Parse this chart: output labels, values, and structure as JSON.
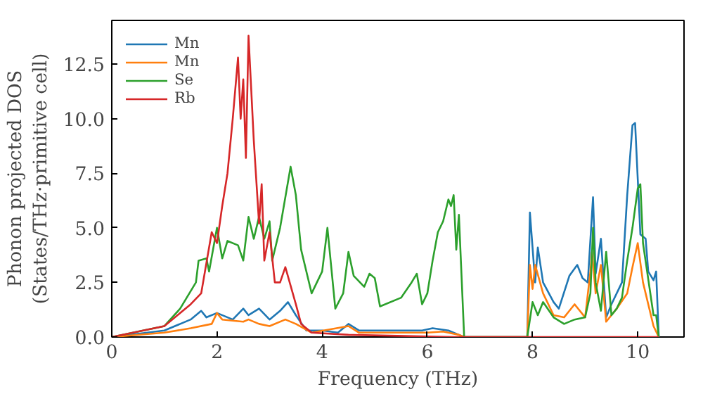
{
  "chart_data": {
    "type": "line",
    "xlabel": "Frequency (THz)",
    "ylabel": "Phonon projected DOS\n(States/THz·primitive cell)",
    "xlim": [
      0,
      10.88
    ],
    "ylim": [
      0,
      14.5
    ],
    "xticks": [
      0,
      2,
      4,
      6,
      8,
      10
    ],
    "yticks": [
      {
        "value": 0,
        "label": "0.0"
      },
      2.5,
      {
        "value": 5,
        "label": "5.0"
      },
      {
        "value": 7.5,
        "label": "7.5"
      },
      {
        "value": 10,
        "label": "10.0"
      },
      12.5
    ],
    "grid": false,
    "legend": "top left",
    "series": [
      {
        "name": "Mn",
        "color": "#1f77b4",
        "x": [
          0,
          1,
          1.5,
          1.7,
          1.8,
          2.0,
          2.3,
          2.5,
          2.6,
          2.8,
          3.0,
          3.2,
          3.35,
          3.5,
          3.7,
          4.0,
          4.3,
          4.5,
          4.7,
          5.5,
          5.9,
          6.1,
          6.4,
          6.6,
          6.7,
          7.9,
          7.95,
          8.05,
          8.1,
          8.2,
          8.4,
          8.5,
          8.7,
          8.85,
          8.95,
          9.05,
          9.15,
          9.2,
          9.3,
          9.4,
          9.5,
          9.7,
          9.8,
          9.9,
          9.95,
          10.05,
          10.15,
          10.2,
          10.3,
          10.35,
          10.4
        ],
        "values": [
          0,
          0.3,
          0.8,
          1.2,
          0.9,
          1.1,
          0.8,
          1.3,
          1.0,
          1.3,
          0.8,
          1.2,
          1.6,
          1.0,
          0.3,
          0.3,
          0.2,
          0.6,
          0.3,
          0.3,
          0.3,
          0.4,
          0.3,
          0.1,
          0,
          0,
          5.7,
          2.5,
          4.1,
          2.5,
          1.6,
          1.3,
          2.8,
          3.3,
          2.7,
          2.5,
          6.4,
          2.9,
          4.5,
          0.9,
          1.5,
          2.5,
          6.5,
          9.7,
          9.8,
          4.7,
          4.5,
          3.0,
          2.6,
          3.0,
          0
        ]
      },
      {
        "name": "Mn",
        "color": "#ff7f0e",
        "x": [
          0,
          1,
          1.5,
          1.9,
          2.0,
          2.1,
          2.5,
          2.6,
          2.8,
          3.0,
          3.3,
          3.5,
          3.8,
          4.5,
          4.7,
          5.5,
          6.0,
          6.3,
          6.6,
          6.7,
          7.9,
          7.95,
          8.0,
          8.05,
          8.2,
          8.4,
          8.6,
          8.7,
          8.8,
          9.0,
          9.1,
          9.13,
          9.2,
          9.3,
          9.4,
          9.6,
          9.8,
          9.9,
          10.0,
          10.1,
          10.3,
          10.4
        ],
        "values": [
          0,
          0.2,
          0.4,
          0.6,
          1.1,
          0.8,
          0.7,
          0.8,
          0.6,
          0.5,
          0.8,
          0.6,
          0.2,
          0.5,
          0.2,
          0.2,
          0.2,
          0.25,
          0.1,
          0,
          0,
          3.3,
          2.2,
          3.3,
          2.0,
          1.0,
          0.9,
          1.2,
          1.5,
          0.9,
          3.0,
          3.9,
          2.0,
          3.3,
          0.7,
          1.3,
          2.0,
          3.2,
          4.3,
          2.5,
          0.5,
          0
        ]
      },
      {
        "name": "Se",
        "color": "#2ca02c",
        "x": [
          0,
          1,
          1.3,
          1.6,
          1.65,
          1.8,
          1.85,
          2.0,
          2.1,
          2.2,
          2.4,
          2.5,
          2.6,
          2.7,
          2.8,
          2.9,
          3.0,
          3.05,
          3.2,
          3.4,
          3.5,
          3.6,
          3.8,
          4.0,
          4.1,
          4.25,
          4.4,
          4.5,
          4.6,
          4.8,
          4.9,
          5.0,
          5.1,
          5.5,
          5.7,
          5.8,
          5.9,
          6.0,
          6.1,
          6.2,
          6.3,
          6.4,
          6.45,
          6.5,
          6.55,
          6.6,
          6.7,
          7.9,
          8.0,
          8.1,
          8.2,
          8.4,
          8.6,
          8.8,
          9.0,
          9.1,
          9.15,
          9.2,
          9.3,
          9.4,
          9.5,
          9.6,
          9.7,
          9.8,
          9.9,
          10.0,
          10.05,
          10.1,
          10.3,
          10.35,
          10.4
        ],
        "values": [
          0,
          0.5,
          1.3,
          2.5,
          3.5,
          3.6,
          3.0,
          5.0,
          3.6,
          4.4,
          4.2,
          3.5,
          5.5,
          4.5,
          5.5,
          4.5,
          5.3,
          3.5,
          5.0,
          7.8,
          6.5,
          4.0,
          2.0,
          3.0,
          5.0,
          1.3,
          2.0,
          3.9,
          2.8,
          2.3,
          2.9,
          2.7,
          1.4,
          1.8,
          2.5,
          2.9,
          1.5,
          2.0,
          3.5,
          4.8,
          5.3,
          6.3,
          6.0,
          6.5,
          4.0,
          5.6,
          0,
          0,
          1.6,
          1.0,
          1.6,
          0.9,
          0.6,
          0.8,
          0.9,
          2.0,
          5.0,
          2.5,
          1.2,
          3.9,
          1.0,
          1.3,
          1.8,
          3.5,
          5.0,
          6.8,
          7.0,
          4.3,
          1.0,
          1.0,
          0
        ]
      },
      {
        "name": "Rb",
        "color": "#d62728",
        "x": [
          0,
          1,
          1.5,
          1.7,
          1.9,
          2.0,
          2.1,
          2.2,
          2.3,
          2.4,
          2.45,
          2.5,
          2.55,
          2.6,
          2.7,
          2.8,
          2.85,
          2.9,
          3.0,
          3.1,
          3.2,
          3.3,
          3.5,
          3.6,
          3.8,
          4.5,
          6.5,
          7.9,
          10.4
        ],
        "values": [
          0,
          0.5,
          1.5,
          2.0,
          4.8,
          4.3,
          6.0,
          7.5,
          10.0,
          12.8,
          10.0,
          11.8,
          8.2,
          13.8,
          9.0,
          5.2,
          7.0,
          3.5,
          4.8,
          2.5,
          2.5,
          3.2,
          1.5,
          0.6,
          0.2,
          0.1,
          0,
          0,
          0
        ]
      }
    ]
  }
}
